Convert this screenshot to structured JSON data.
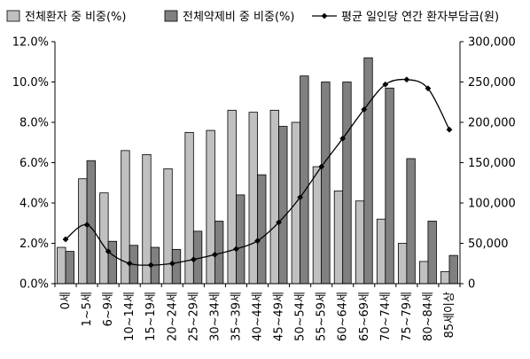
{
  "chart_data": {
    "type": "bar",
    "categories": [
      "0세",
      "1~5세",
      "6~9세",
      "10~14세",
      "15~19세",
      "20~24세",
      "25~29세",
      "30~34세",
      "35~39세",
      "40~44세",
      "45~49세",
      "50~54세",
      "55~59세",
      "60~64세",
      "65~69세",
      "70~74세",
      "75~79세",
      "80~84세",
      "85세이상"
    ],
    "series": [
      {
        "name": "전체환자 중 비중(%)",
        "axis": "left",
        "kind": "bar",
        "color": "#c0c0c0",
        "values": [
          1.8,
          5.2,
          4.5,
          6.6,
          6.4,
          5.7,
          7.5,
          7.6,
          8.6,
          8.5,
          8.6,
          8.0,
          5.8,
          4.6,
          4.1,
          3.2,
          2.0,
          1.1,
          0.6
        ]
      },
      {
        "name": "전체약제비 중 비중(%)",
        "axis": "left",
        "kind": "bar",
        "color": "#808080",
        "values": [
          1.6,
          6.1,
          2.1,
          1.9,
          1.8,
          1.7,
          2.6,
          3.1,
          4.4,
          5.4,
          7.8,
          10.3,
          10.0,
          10.0,
          11.2,
          9.7,
          6.2,
          3.1,
          1.4
        ]
      },
      {
        "name": "평균 일인당 연간 환자부담금(원)",
        "axis": "right",
        "kind": "line",
        "color": "#000000",
        "values": [
          55000,
          73000,
          40000,
          25000,
          23000,
          25000,
          30000,
          36000,
          43000,
          53000,
          76000,
          107000,
          145000,
          180000,
          216000,
          247000,
          253000,
          242000,
          191000
        ]
      }
    ],
    "left_axis": {
      "ylim": [
        0,
        12
      ],
      "ticks": [
        "0.0%",
        "2.0%",
        "4.0%",
        "6.0%",
        "8.0%",
        "10.0%",
        "12.0%"
      ]
    },
    "right_axis": {
      "ylim": [
        0,
        300000
      ],
      "ticks": [
        "0",
        "50,000",
        "100,000",
        "150,000",
        "200,000",
        "250,000",
        "300,000"
      ]
    },
    "legend_position": "top",
    "grid": false
  }
}
